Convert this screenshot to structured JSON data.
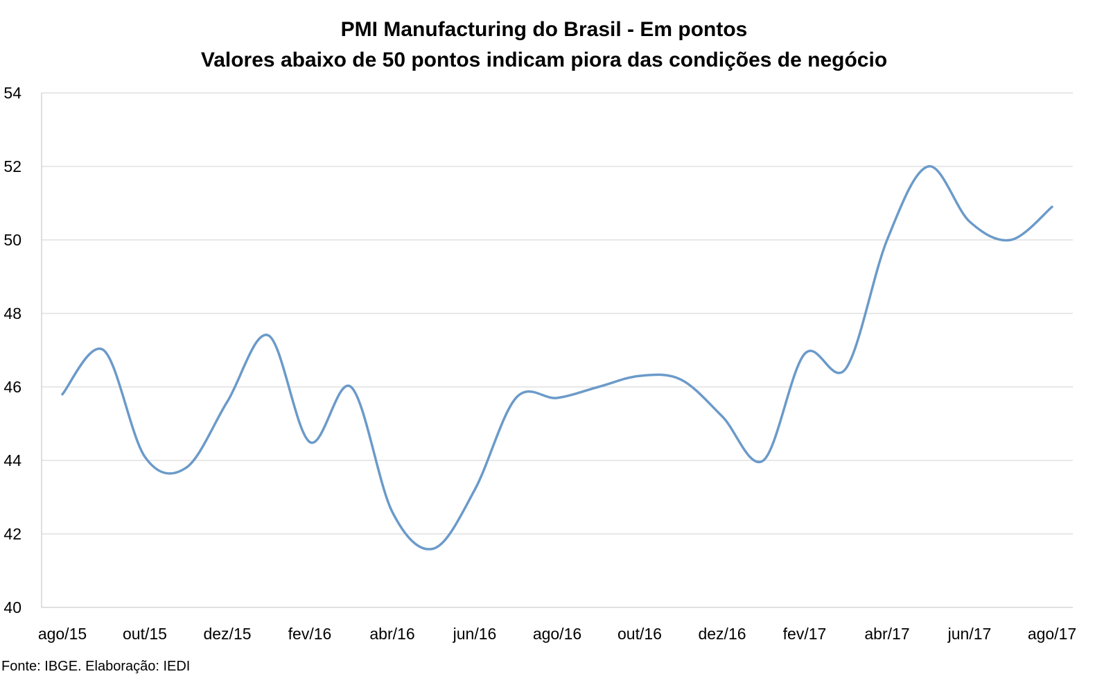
{
  "chart_data": {
    "type": "line",
    "title": "PMI Manufacturing do Brasil - Em pontos",
    "subtitle": "Valores abaixo de 50 pontos indicam piora das condições de negócio",
    "xlabel": "",
    "ylabel": "",
    "ylim": [
      40,
      54
    ],
    "y_ticks": [
      "40",
      "42",
      "44",
      "46",
      "48",
      "50",
      "52",
      "54"
    ],
    "x_tick_labels": [
      "ago/15",
      "out/15",
      "dez/15",
      "fev/16",
      "abr/16",
      "jun/16",
      "ago/16",
      "out/16",
      "dez/16",
      "fev/17",
      "abr/17",
      "jun/17",
      "ago/17"
    ],
    "categories": [
      "ago/15",
      "set/15",
      "out/15",
      "nov/15",
      "dez/15",
      "jan/16",
      "fev/16",
      "mar/16",
      "abr/16",
      "mai/16",
      "jun/16",
      "jul/16",
      "ago/16",
      "set/16",
      "out/16",
      "nov/16",
      "dez/16",
      "jan/17",
      "fev/17",
      "mar/17",
      "abr/17",
      "mai/17",
      "jun/17",
      "jul/17",
      "ago/17"
    ],
    "series": [
      {
        "values": [
          45.8,
          47.0,
          44.1,
          43.8,
          45.6,
          47.4,
          44.5,
          46.0,
          42.6,
          41.6,
          43.2,
          45.7,
          45.7,
          46.0,
          46.3,
          46.2,
          45.2,
          44.0,
          46.9,
          46.5,
          50.0,
          52.0,
          50.5,
          50.0,
          50.9
        ],
        "color": "#6b9ac9"
      }
    ],
    "grid": true,
    "legend": "none"
  },
  "source_note": "Fonte: IBGE. Elaboração: IEDI"
}
